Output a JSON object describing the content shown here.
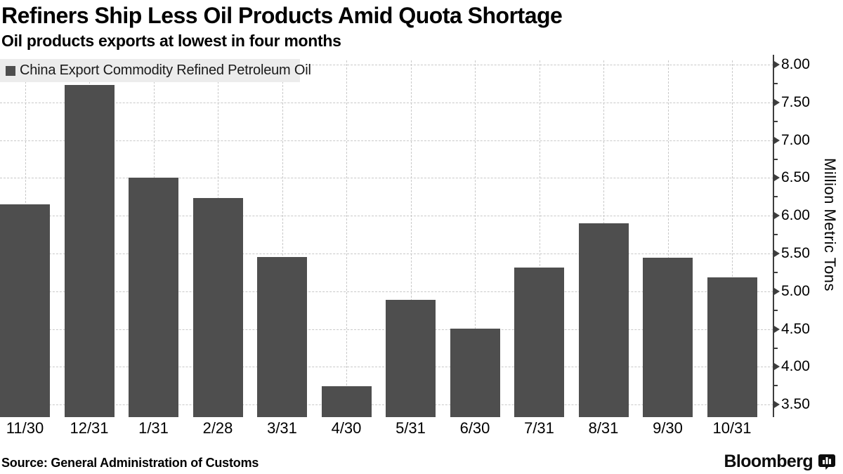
{
  "header": {
    "title": "Refiners Ship Less Oil Products Amid Quota Shortage",
    "subtitle": "Oil products exports at lowest in four months"
  },
  "legend": {
    "swatch_color": "#4e4e4e",
    "label": "China Export Commodity Refined Petroleum Oil"
  },
  "chart_data": {
    "type": "bar",
    "title": "Refiners Ship Less Oil Products Amid Quota Shortage",
    "subtitle": "Oil products exports at lowest in four months",
    "categories": [
      "11/30",
      "12/31",
      "1/31",
      "2/28",
      "3/31",
      "4/30",
      "5/31",
      "6/30",
      "7/31",
      "8/31",
      "9/30",
      "10/31"
    ],
    "values": [
      6.15,
      7.73,
      6.5,
      6.23,
      5.45,
      3.74,
      4.89,
      4.51,
      5.31,
      5.9,
      5.44,
      5.18
    ],
    "series_name": "China Export Commodity Refined Petroleum Oil",
    "xlabel": "",
    "ylabel": "Million Metric Tons",
    "ylim": [
      3.33,
      8.14
    ],
    "yticks_major": [
      3.5,
      4.0,
      4.5,
      5.0,
      5.5,
      6.0,
      6.5,
      7.0,
      7.5,
      8.0
    ],
    "ytick_labels": [
      "3.50",
      "4.00",
      "4.50",
      "5.00",
      "5.50",
      "6.00",
      "6.50",
      "7.00",
      "7.50",
      "8.00"
    ],
    "yticks_minor": [
      3.75,
      4.25,
      4.75,
      5.25,
      5.75,
      6.25,
      6.75,
      7.25,
      7.75
    ],
    "grid": "dashed horizontal lines at major y-ticks, dashed vertical lines at category centers",
    "legend_position": "top-left",
    "y_axis_side": "right",
    "colors": {
      "bar": "#4e4e4e",
      "grid": "#c9c9c9",
      "axis": "#3d3d3d",
      "legend_background": "#ececec",
      "text": "#000000"
    }
  },
  "footer": {
    "source": "Source: General Administration of Customs",
    "brand": "Bloomberg",
    "brand_icon": "bar-chart-bubble-icon"
  }
}
